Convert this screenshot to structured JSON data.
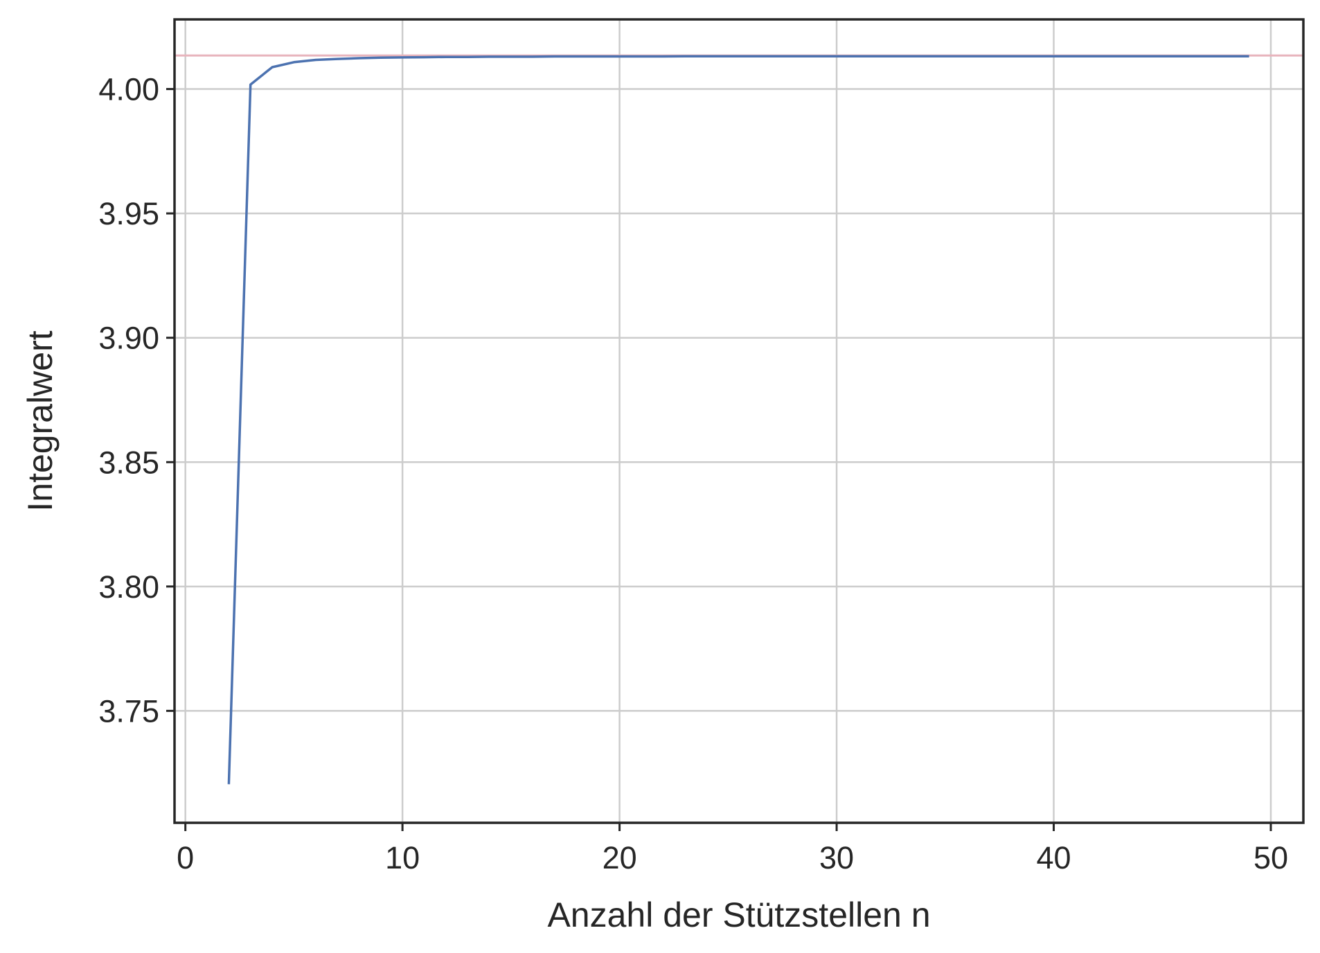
{
  "chart_data": {
    "type": "line",
    "title": "",
    "xlabel": "Anzahl der Stützstellen n",
    "ylabel": "Integralwert",
    "xlim": [
      -0.5,
      51.5
    ],
    "ylim": [
      3.705,
      4.028
    ],
    "xticks": [
      0,
      10,
      20,
      30,
      40,
      50
    ],
    "xtick_labels": [
      "0",
      "10",
      "20",
      "30",
      "40",
      "50"
    ],
    "yticks": [
      3.75,
      3.8,
      3.85,
      3.9,
      3.95,
      4.0
    ],
    "ytick_labels": [
      "3.75",
      "3.80",
      "3.85",
      "3.90",
      "3.95",
      "4.00"
    ],
    "grid": true,
    "legend": "none",
    "series": [
      {
        "color": "#4c72b0",
        "x": [
          2,
          3,
          4,
          5,
          6,
          7,
          8,
          9,
          10,
          11,
          12,
          13,
          14,
          15,
          16,
          17,
          18,
          19,
          20,
          21,
          22,
          23,
          24,
          25,
          26,
          27,
          28,
          29,
          30,
          31,
          32,
          33,
          34,
          35,
          36,
          37,
          38,
          39,
          40,
          41,
          42,
          43,
          44,
          45,
          46,
          47,
          48,
          49
        ],
        "y": [
          3.7205,
          4.0018,
          4.0088,
          4.0108,
          4.0117,
          4.0121,
          4.0124,
          4.0126,
          4.0127,
          4.0128,
          4.0129,
          4.0129,
          4.013,
          4.013,
          4.013,
          4.0131,
          4.0131,
          4.0131,
          4.0131,
          4.0131,
          4.0131,
          4.0132,
          4.0132,
          4.0132,
          4.0132,
          4.0132,
          4.0132,
          4.0132,
          4.0132,
          4.0132,
          4.0132,
          4.0132,
          4.0132,
          4.0132,
          4.0132,
          4.0132,
          4.0132,
          4.0132,
          4.0132,
          4.0132,
          4.0132,
          4.0132,
          4.0132,
          4.0132,
          4.0132,
          4.0132,
          4.0132,
          4.0132
        ]
      }
    ],
    "reference_line": {
      "type": "horizontal",
      "y": 4.0135,
      "color": "#e8b4bc"
    }
  }
}
